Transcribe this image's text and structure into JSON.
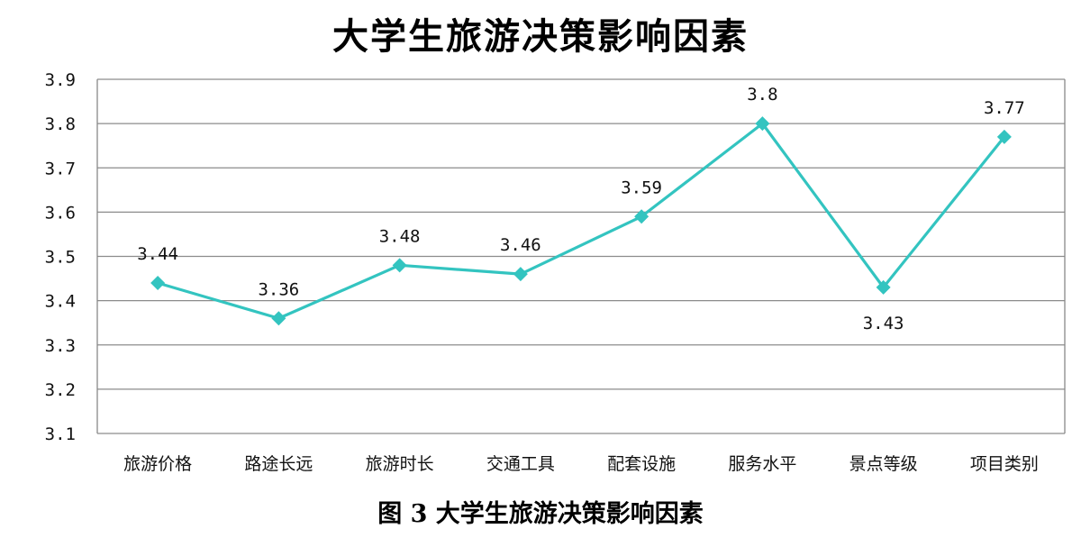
{
  "chart_data": {
    "type": "line",
    "title": "大学生旅游决策影响因素",
    "caption": "图 3  大学生旅游决策影响因素",
    "categories": [
      "旅游价格",
      "路途长远",
      "旅游时长",
      "交通工具",
      "配套设施",
      "服务水平",
      "景点等级",
      "项目类别"
    ],
    "series": [
      {
        "values": [
          3.44,
          3.36,
          3.48,
          3.46,
          3.59,
          3.8,
          3.43,
          3.77
        ],
        "data_labels": [
          "3.44",
          "3.36",
          "3.48",
          "3.46",
          "3.59",
          "3.8",
          "3.43",
          "3.77"
        ],
        "color": "#33C4C0",
        "marker": "diamond"
      }
    ],
    "ylim": [
      3.1,
      3.9
    ],
    "yticks": [
      "3.1",
      "3.2",
      "3.3",
      "3.4",
      "3.5",
      "3.6",
      "3.7",
      "3.8",
      "3.9"
    ],
    "xlabel": "",
    "ylabel": "",
    "grid": "horizontal",
    "legend": "none",
    "gridline_color": "#8c8c8c",
    "axis_color": "#888888"
  }
}
